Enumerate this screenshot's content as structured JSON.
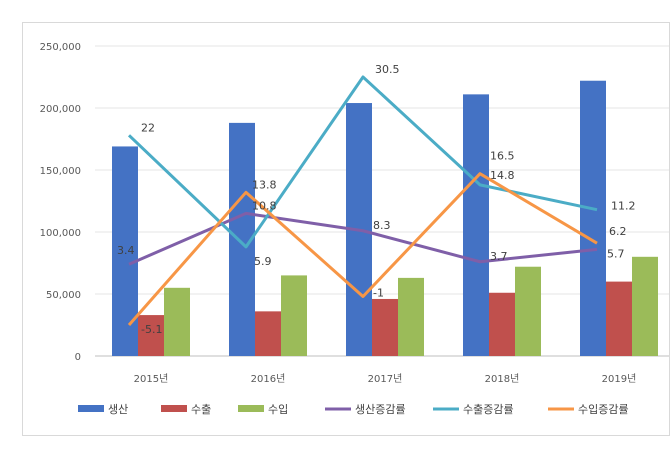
{
  "chart_data": {
    "type": "bar+line",
    "title": "",
    "categories": [
      "2015년",
      "2016년",
      "2017년",
      "2018년",
      "2019년"
    ],
    "ylim": [
      0,
      250000
    ],
    "yticks": [
      "0",
      "50,000",
      "100,000",
      "150,000",
      "200,000",
      "250,000"
    ],
    "ytick_values": [
      0,
      50000,
      100000,
      150000,
      200000,
      250000
    ],
    "grid": "horizontal",
    "legend_position": "bottom",
    "bar_series": [
      {
        "name": "생산",
        "color": "#4472C4",
        "values": [
          169000,
          188000,
          204000,
          211000,
          222000
        ]
      },
      {
        "name": "수출",
        "color": "#C0504D",
        "values": [
          33000,
          36000,
          46000,
          51000,
          60000
        ]
      },
      {
        "name": "수입",
        "color": "#9BBB59",
        "values": [
          55000,
          65000,
          63000,
          72000,
          80000
        ]
      }
    ],
    "rate_series": [
      {
        "name": "생산증감률",
        "color": "#7F5FA8",
        "values": [
          3.4,
          10.8,
          8.3,
          3.7,
          5.7
        ],
        "labels": [
          "3.4",
          "10.8",
          "8.3",
          "3.7",
          "5.7"
        ],
        "y_positions": [
          74000,
          115000,
          101000,
          76000,
          86000
        ]
      },
      {
        "name": "수출증감률",
        "color": "#4BACC6",
        "values": [
          22,
          5.9,
          30.5,
          14.8,
          11.2
        ],
        "labels": [
          "22",
          "5.9",
          "30.5",
          "14.8",
          "11.2"
        ],
        "y_positions": [
          178000,
          88000,
          225000,
          138000,
          118000
        ]
      },
      {
        "name": "수입증감률",
        "color": "#F79646",
        "values": [
          -5.1,
          13.8,
          -1,
          16.5,
          6.2
        ],
        "labels": [
          "-5.1",
          "13.8",
          "-1",
          "16.5",
          "6.2"
        ],
        "y_positions": [
          25000,
          132000,
          48000,
          147000,
          91000
        ]
      }
    ]
  }
}
